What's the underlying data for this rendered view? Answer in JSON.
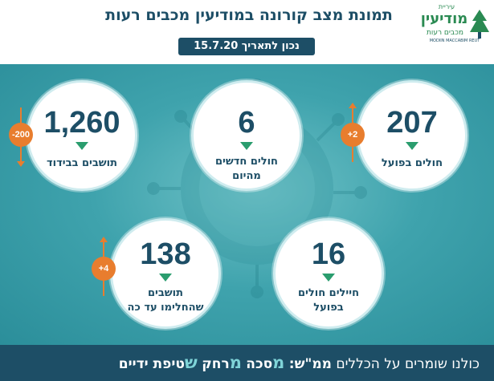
{
  "header": {
    "title": "תמונת מצב קורונה במודיעין מכבים רעות",
    "date_label": "נכון לתאריך 15.7.20"
  },
  "logo": {
    "small": "עיריית",
    "main": "מודיעין",
    "sub": "מכבים רעות",
    "english": "MODIIN MACCABIM REUT"
  },
  "stats": [
    {
      "value": "207",
      "label": "חולים בפועל",
      "change": "+2",
      "direction": "up"
    },
    {
      "value": "6",
      "label_line1": "חולים חדשים",
      "label_line2": "מהיום"
    },
    {
      "value": "1,260",
      "label": "תושבים בבידוד",
      "change": "-200",
      "direction": "down"
    },
    {
      "value": "16",
      "label_line1": "חיילים חולים",
      "label_line2": "בפועל"
    },
    {
      "value": "138",
      "label_line1": "תושבים",
      "label_line2": "שהחלימו עד כה",
      "change": "+4",
      "direction": "up"
    }
  ],
  "footer": {
    "intro": "כולנו שומרים על הכללים",
    "rules_label": "ממ\"ש:",
    "m1_letter": "מ",
    "m1_rest": "סכה",
    "m2_letter": "מ",
    "m2_rest": "רחק",
    "s_letter": "ש",
    "s_rest": "טיפת ידיים"
  },
  "colors": {
    "navy": "#1d4e66",
    "teal": "#3fa3ad",
    "orange": "#e87d2e",
    "green": "#2a9d6e"
  }
}
